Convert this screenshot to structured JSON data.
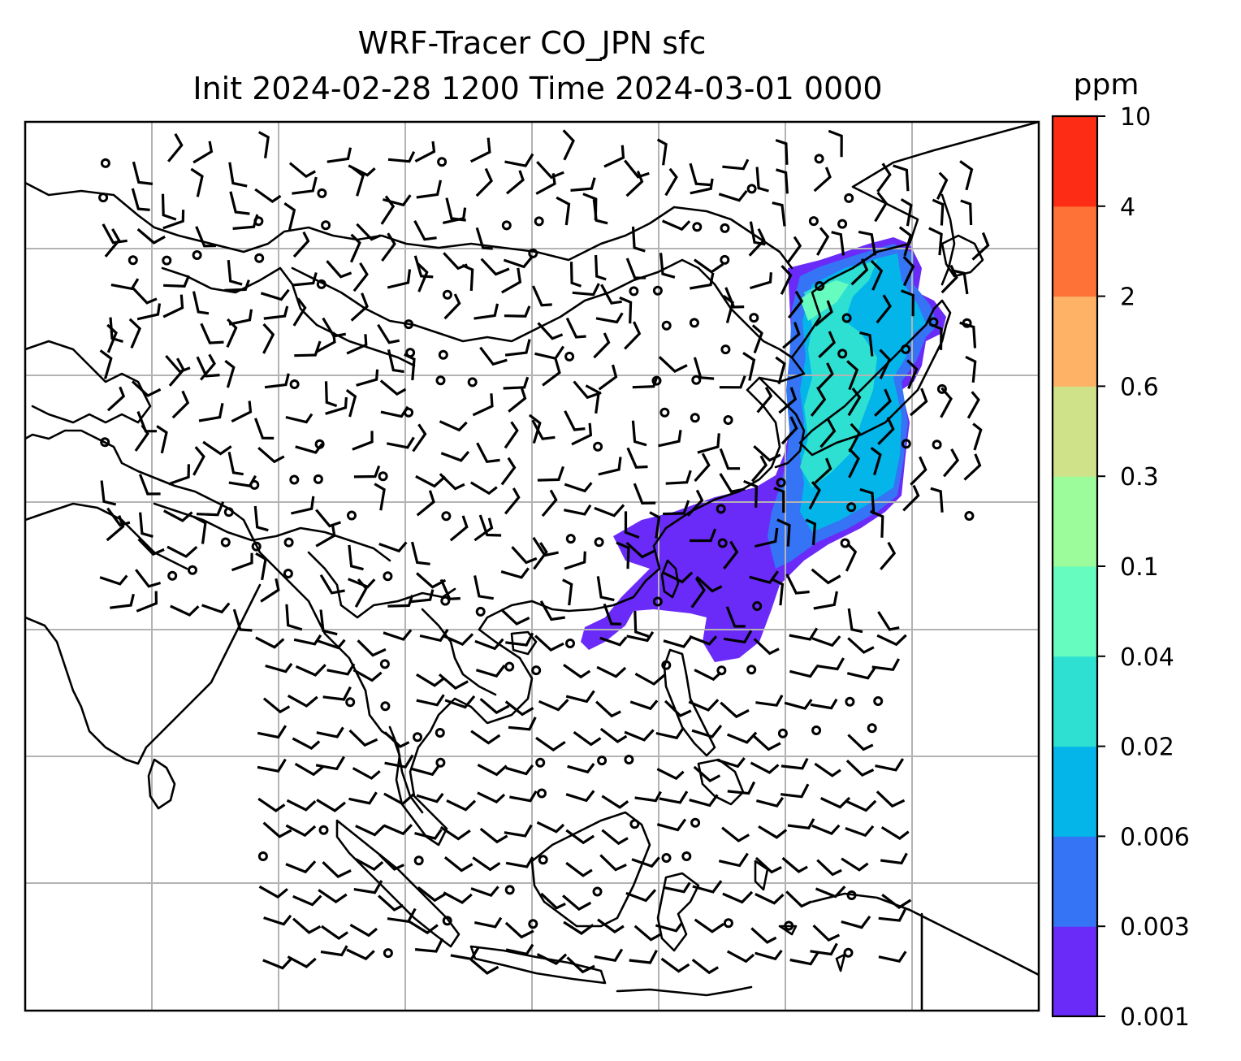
{
  "title": {
    "line1": "WRF-Tracer CO_JPN sfc",
    "line2": "Init 2024-02-28 1200 Time 2024-03-01 0000"
  },
  "colorbar": {
    "unit_label": "ppm",
    "ticks": [
      "0.001",
      "0.003",
      "0.006",
      "0.02",
      "0.04",
      "0.1",
      "0.3",
      "0.6",
      "2",
      "4",
      "10"
    ],
    "colors": [
      "#6a2bf9",
      "#3574f5",
      "#04b5ea",
      "#2ee0d2",
      "#66fbbf",
      "#9cfc9c",
      "#cfe289",
      "#feb266",
      "#fe7238",
      "#fd2c15"
    ]
  },
  "map": {
    "field": "CO_JPN tracer concentration",
    "overlay": "surface wind barbs"
  }
}
